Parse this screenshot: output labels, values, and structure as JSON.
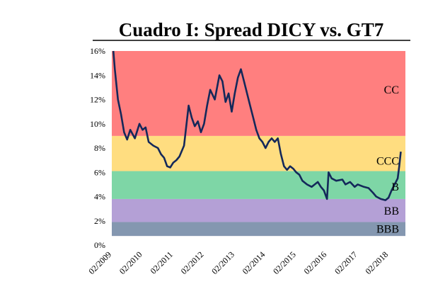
{
  "chart_data": {
    "type": "line",
    "title": "Cuadro I: Spread DICY vs. GT7",
    "xlabel": "",
    "ylabel": "",
    "ylim": [
      0,
      16
    ],
    "y_ticks": [
      "0%",
      "2%",
      "4%",
      "6%",
      "8%",
      "10%",
      "12%",
      "14%",
      "16%"
    ],
    "x_ticks": [
      "02/2009",
      "02/2010",
      "02/2011",
      "02/2012",
      "02/2013",
      "02/2014",
      "02/2015",
      "02/2016",
      "02/2017",
      "02/2018"
    ],
    "grid": false,
    "legend": "none",
    "bands": [
      {
        "label": "BBB",
        "from": 0.75,
        "to": 1.9,
        "color": "#8497b0"
      },
      {
        "label": "BB",
        "from": 1.9,
        "to": 3.8,
        "color": "#b4a0d6"
      },
      {
        "label": "B",
        "from": 3.8,
        "to": 6.1,
        "color": "#7ed6a6"
      },
      {
        "label": "CCC",
        "from": 6.1,
        "to": 9.0,
        "color": "#ffdd80"
      },
      {
        "label": "CC",
        "from": 9.0,
        "to": 16.0,
        "color": "#ff7f7f"
      }
    ],
    "series": [
      {
        "color": "#14285a",
        "x": [
          2009.05,
          2009.1,
          2009.2,
          2009.3,
          2009.4,
          2009.5,
          2009.6,
          2009.75,
          2009.9,
          2010.0,
          2010.1,
          2010.2,
          2010.35,
          2010.5,
          2010.6,
          2010.7,
          2010.8,
          2010.9,
          2011.0,
          2011.1,
          2011.2,
          2011.35,
          2011.5,
          2011.6,
          2011.7,
          2011.8,
          2011.9,
          2012.0,
          2012.1,
          2012.2,
          2012.35,
          2012.5,
          2012.6,
          2012.7,
          2012.8,
          2012.9,
          2013.0,
          2013.1,
          2013.2,
          2013.3,
          2013.4,
          2013.5,
          2013.6,
          2013.7,
          2013.8,
          2013.9,
          2014.0,
          2014.1,
          2014.2,
          2014.3,
          2014.4,
          2014.5,
          2014.6,
          2014.7,
          2014.8,
          2014.9,
          2015.0,
          2015.1,
          2015.2,
          2015.35,
          2015.5,
          2015.6,
          2015.7,
          2015.8,
          2015.9,
          2016.0,
          2016.05,
          2016.15,
          2016.3,
          2016.5,
          2016.6,
          2016.75,
          2016.9,
          2017.0,
          2017.2,
          2017.35,
          2017.5,
          2017.6,
          2017.75,
          2017.9,
          2018.0,
          2018.1,
          2018.2,
          2018.3,
          2018.35,
          2018.4
        ],
        "values": [
          16.0,
          14.5,
          12.0,
          10.8,
          9.3,
          8.7,
          9.5,
          8.8,
          10.0,
          9.5,
          9.7,
          8.5,
          8.2,
          8.0,
          7.5,
          7.2,
          6.5,
          6.4,
          6.8,
          7.0,
          7.3,
          8.2,
          11.5,
          10.5,
          9.8,
          10.2,
          9.3,
          10.0,
          11.5,
          12.8,
          12.0,
          14.0,
          13.5,
          11.8,
          12.5,
          11.0,
          12.5,
          13.8,
          14.5,
          13.5,
          12.5,
          11.5,
          10.5,
          9.5,
          8.8,
          8.5,
          8.0,
          8.5,
          8.8,
          8.5,
          8.8,
          7.5,
          6.5,
          6.2,
          6.5,
          6.3,
          6.0,
          5.8,
          5.3,
          5.0,
          4.8,
          5.0,
          5.2,
          4.8,
          4.5,
          3.8,
          6.0,
          5.5,
          5.3,
          5.4,
          5.0,
          5.2,
          4.8,
          5.0,
          4.8,
          4.7,
          4.3,
          4.0,
          3.8,
          3.7,
          3.9,
          4.5,
          5.0,
          5.5,
          6.5,
          7.7
        ]
      }
    ]
  }
}
